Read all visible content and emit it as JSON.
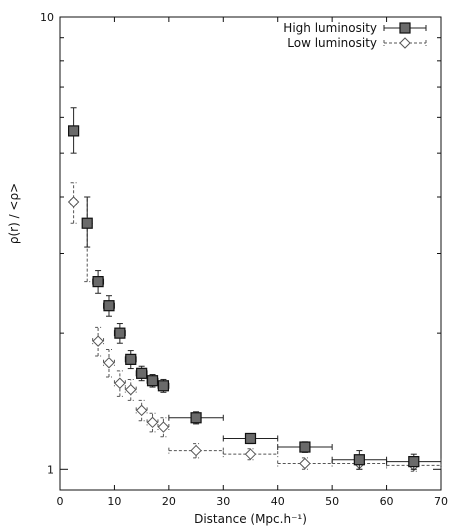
{
  "chart_data": {
    "type": "scatter",
    "title": "",
    "xlabel": "Distance (Mpc.h⁻¹)",
    "ylabel": "ρ(r) / <ρ>",
    "xlim": [
      0,
      70
    ],
    "ylim": [
      0.9,
      10
    ],
    "y_scale": "log",
    "x_ticks": [
      0,
      10,
      20,
      30,
      40,
      50,
      60,
      70
    ],
    "y_tick_labels": [
      {
        "value": 1,
        "label": "1"
      },
      {
        "value": 10,
        "label": "10"
      }
    ],
    "legend_position": "top-right",
    "series": [
      {
        "name": "High luminosity",
        "marker": "filled-square",
        "line": "solid",
        "color": "#222222",
        "points": [
          {
            "x": 2.5,
            "y": 5.6,
            "ylow": 5.0,
            "yhigh": 6.3,
            "xerr": 0.5
          },
          {
            "x": 5.0,
            "y": 3.5,
            "ylow": 3.1,
            "yhigh": 4.0,
            "xerr": 0.5
          },
          {
            "x": 7.0,
            "y": 2.6,
            "ylow": 2.45,
            "yhigh": 2.75,
            "xerr": 1.0
          },
          {
            "x": 9.0,
            "y": 2.3,
            "ylow": 2.18,
            "yhigh": 2.42,
            "xerr": 1.0
          },
          {
            "x": 11.0,
            "y": 2.0,
            "ylow": 1.9,
            "yhigh": 2.1,
            "xerr": 1.0
          },
          {
            "x": 13.0,
            "y": 1.75,
            "ylow": 1.67,
            "yhigh": 1.83,
            "xerr": 1.0
          },
          {
            "x": 15.0,
            "y": 1.63,
            "ylow": 1.57,
            "yhigh": 1.69,
            "xerr": 1.0
          },
          {
            "x": 17.0,
            "y": 1.57,
            "ylow": 1.52,
            "yhigh": 1.62,
            "xerr": 1.0
          },
          {
            "x": 19.0,
            "y": 1.53,
            "ylow": 1.48,
            "yhigh": 1.58,
            "xerr": 1.0
          },
          {
            "x": 25.0,
            "y": 1.3,
            "ylow": 1.26,
            "yhigh": 1.34,
            "xerr": 5.0
          },
          {
            "x": 35.0,
            "y": 1.17,
            "ylow": 1.14,
            "yhigh": 1.2,
            "xerr": 5.0
          },
          {
            "x": 45.0,
            "y": 1.12,
            "ylow": 1.09,
            "yhigh": 1.15,
            "xerr": 5.0
          },
          {
            "x": 55.0,
            "y": 1.05,
            "ylow": 1.0,
            "yhigh": 1.1,
            "xerr": 5.0
          },
          {
            "x": 65.0,
            "y": 1.04,
            "ylow": 1.0,
            "yhigh": 1.08,
            "xerr": 5.0
          }
        ]
      },
      {
        "name": "Low luminosity",
        "marker": "open-diamond",
        "line": "dashed",
        "color": "#555555",
        "points": [
          {
            "x": 2.5,
            "y": 3.9,
            "ylow": 3.5,
            "yhigh": 4.3,
            "xerr": 0.5
          },
          {
            "x": 5.0,
            "y": 3.5,
            "ylow": 2.6,
            "yhigh": 4.0,
            "xerr": 0.5
          },
          {
            "x": 7.0,
            "y": 1.92,
            "ylow": 1.78,
            "yhigh": 2.06,
            "xerr": 1.0
          },
          {
            "x": 9.0,
            "y": 1.72,
            "ylow": 1.6,
            "yhigh": 1.84,
            "xerr": 1.0
          },
          {
            "x": 11.0,
            "y": 1.55,
            "ylow": 1.45,
            "yhigh": 1.65,
            "xerr": 1.0
          },
          {
            "x": 13.0,
            "y": 1.5,
            "ylow": 1.42,
            "yhigh": 1.58,
            "xerr": 1.0
          },
          {
            "x": 15.0,
            "y": 1.35,
            "ylow": 1.28,
            "yhigh": 1.42,
            "xerr": 1.0
          },
          {
            "x": 17.0,
            "y": 1.27,
            "ylow": 1.21,
            "yhigh": 1.33,
            "xerr": 1.0
          },
          {
            "x": 19.0,
            "y": 1.24,
            "ylow": 1.18,
            "yhigh": 1.3,
            "xerr": 1.0
          },
          {
            "x": 25.0,
            "y": 1.1,
            "ylow": 1.06,
            "yhigh": 1.14,
            "xerr": 5.0
          },
          {
            "x": 35.0,
            "y": 1.08,
            "ylow": 1.05,
            "yhigh": 1.11,
            "xerr": 5.0
          },
          {
            "x": 45.0,
            "y": 1.03,
            "ylow": 1.0,
            "yhigh": 1.06,
            "xerr": 5.0
          },
          {
            "x": 55.0,
            "y": 1.03,
            "ylow": 1.0,
            "yhigh": 1.06,
            "xerr": 5.0
          },
          {
            "x": 65.0,
            "y": 1.02,
            "ylow": 0.99,
            "yhigh": 1.05,
            "xerr": 5.0
          }
        ]
      }
    ]
  }
}
